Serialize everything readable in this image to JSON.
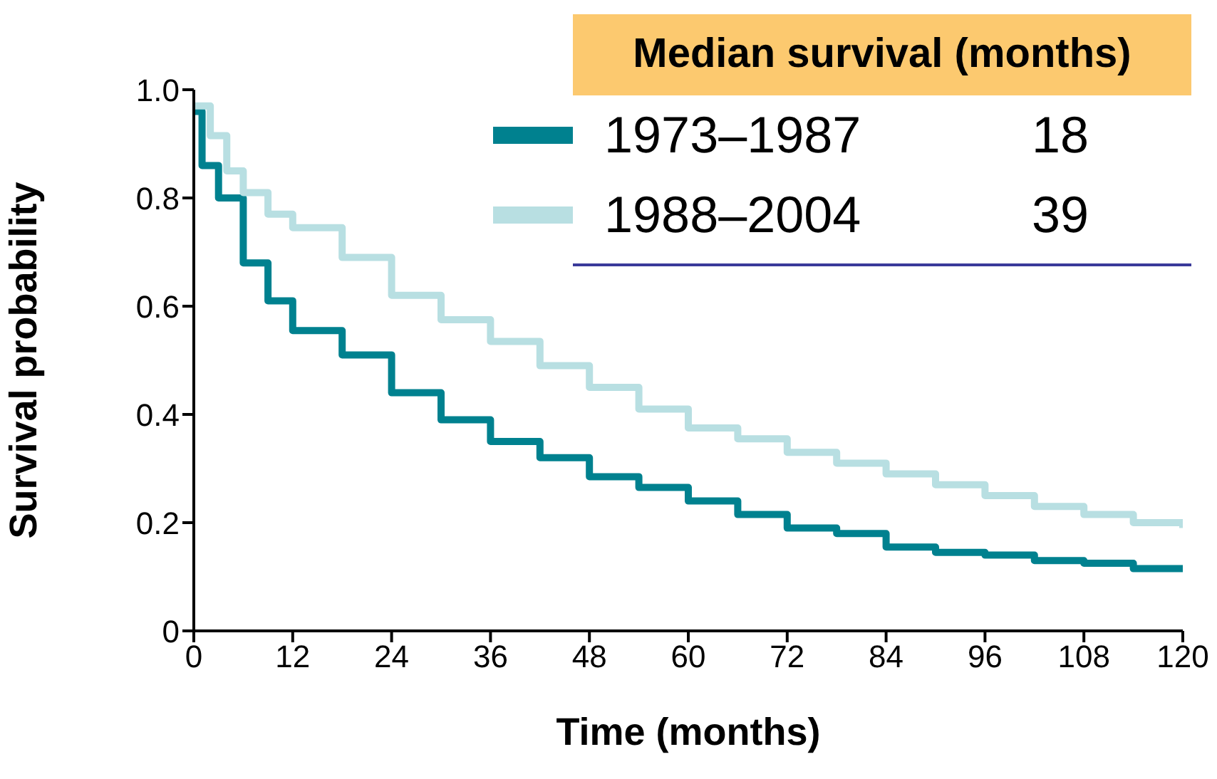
{
  "chart_data": {
    "type": "step",
    "xlabel": "Time (months)",
    "ylabel": "Survival probability",
    "legend_title": "Median survival (months)",
    "annotations": [
      "18",
      "39"
    ],
    "xlim": [
      0,
      120
    ],
    "xticks": [
      0,
      12,
      24,
      36,
      48,
      60,
      72,
      84,
      96,
      108,
      120
    ],
    "ylim": [
      0,
      1
    ],
    "yticks": [
      0,
      0.2,
      0.4,
      0.6,
      0.8,
      {
        "value": 1,
        "label": "1.0"
      }
    ],
    "legend": "top right",
    "marker": "none",
    "line_style": "solid",
    "series": [
      {
        "name": "1973–1987",
        "color": "#00818f",
        "x": [
          0,
          1,
          3,
          6,
          9,
          12,
          18,
          24,
          30,
          36,
          42,
          48,
          54,
          60,
          66,
          72,
          78,
          84,
          90,
          96,
          102,
          108,
          114,
          120
        ],
        "values": [
          0.96,
          0.86,
          0.8,
          0.68,
          0.61,
          0.555,
          0.51,
          0.44,
          0.39,
          0.35,
          0.32,
          0.285,
          0.265,
          0.24,
          0.215,
          0.19,
          0.18,
          0.155,
          0.145,
          0.14,
          0.13,
          0.125,
          0.115,
          0.11
        ]
      },
      {
        "name": "1988–2004",
        "color": "#b8dfe2",
        "x": [
          0,
          2,
          4,
          6,
          9,
          12,
          18,
          24,
          30,
          36,
          42,
          48,
          54,
          60,
          66,
          72,
          78,
          84,
          90,
          96,
          102,
          108,
          114,
          120
        ],
        "values": [
          0.97,
          0.915,
          0.85,
          0.81,
          0.77,
          0.745,
          0.69,
          0.62,
          0.575,
          0.535,
          0.49,
          0.45,
          0.41,
          0.375,
          0.355,
          0.33,
          0.31,
          0.29,
          0.27,
          0.25,
          0.23,
          0.215,
          0.2,
          0.19
        ]
      }
    ]
  }
}
